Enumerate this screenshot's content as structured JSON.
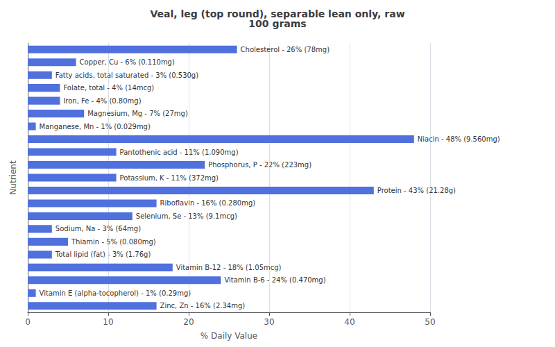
{
  "chart_data": {
    "type": "bar",
    "orientation": "horizontal",
    "title": "Veal, leg (top round), separable lean only, raw\n100 grams",
    "xlabel": "% Daily Value",
    "ylabel": "Nutrient",
    "categories": [
      "Cholesterol - 26% (78mg)",
      "Copper, Cu - 6% (0.110mg)",
      "Fatty acids, total saturated - 3% (0.530g)",
      "Folate, total - 4% (14mcg)",
      "Iron, Fe - 4% (0.80mg)",
      "Magnesium, Mg - 7% (27mg)",
      "Manganese, Mn - 1% (0.029mg)",
      "Niacin - 48% (9.560mg)",
      "Pantothenic acid - 11% (1.090mg)",
      "Phosphorus, P - 22% (223mg)",
      "Potassium, K - 11% (372mg)",
      "Protein - 43% (21.28g)",
      "Riboflavin - 16% (0.280mg)",
      "Selenium, Se - 13% (9.1mcg)",
      "Sodium, Na - 3% (64mg)",
      "Thiamin - 5% (0.080mg)",
      "Total lipid (fat) - 3% (1.76g)",
      "Vitamin B-12 - 18% (1.05mcg)",
      "Vitamin B-6 - 24% (0.470mg)",
      "Vitamin E (alpha-tocopherol) - 1% (0.29mg)",
      "Zinc, Zn - 16% (2.34mg)"
    ],
    "values": [
      26,
      6,
      3,
      4,
      4,
      7,
      1,
      48,
      11,
      22,
      11,
      43,
      16,
      13,
      3,
      5,
      3,
      18,
      24,
      1,
      16
    ],
    "xlim": [
      0,
      50
    ],
    "xticks": [
      0,
      10,
      20,
      30,
      40,
      50
    ],
    "grid": true,
    "tick_labels": "x"
  }
}
